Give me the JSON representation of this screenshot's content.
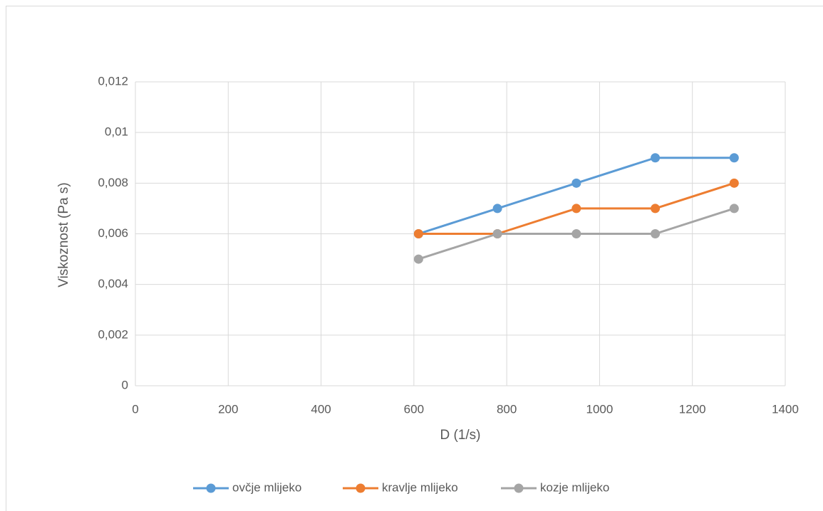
{
  "chart_data": {
    "type": "line",
    "x_label": "D (1/s)",
    "y_label": "Viskoznost (Pa s)",
    "x": [
      610,
      780,
      950,
      1120,
      1290
    ],
    "series": [
      {
        "name": "ovčje mlijeko",
        "color": "#5b9bd5",
        "values": [
          0.006,
          0.007,
          0.008,
          0.009,
          0.009
        ]
      },
      {
        "name": "kravlje mlijeko",
        "color": "#ed7d31",
        "values": [
          0.006,
          0.006,
          0.007,
          0.007,
          0.008
        ]
      },
      {
        "name": "kozje mlijeko",
        "color": "#a5a5a5",
        "values": [
          0.005,
          0.006,
          0.006,
          0.006,
          0.007
        ]
      }
    ],
    "xlim": [
      0,
      1400
    ],
    "xticks": [
      0,
      200,
      400,
      600,
      800,
      1000,
      1200,
      1400
    ],
    "ylim": [
      0,
      0.012
    ],
    "yticks": [
      0,
      {
        "value": 0.002,
        "label": "0,002"
      },
      {
        "value": 0.004,
        "label": "0,004"
      },
      {
        "value": 0.006,
        "label": "0,006"
      },
      {
        "value": 0.008,
        "label": "0,008"
      },
      {
        "value": 0.01,
        "label": "0,01"
      },
      {
        "value": 0.012,
        "label": "0,012"
      }
    ],
    "grid": true,
    "legend": "bottom"
  }
}
